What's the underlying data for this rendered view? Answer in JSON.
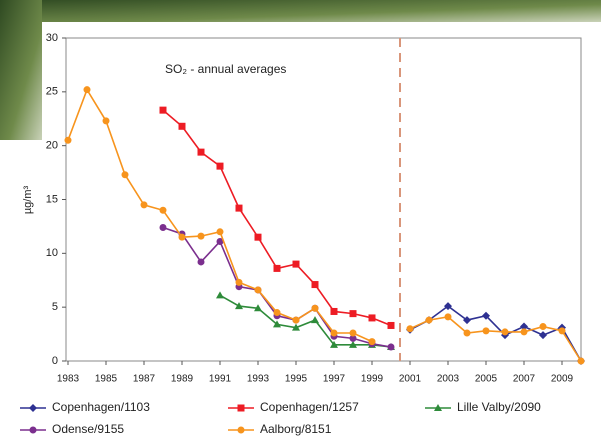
{
  "chart_data": {
    "type": "line",
    "title": "SO₂ - annual averages",
    "y_label": "µg/m³",
    "x": [
      1983,
      1984,
      1985,
      1986,
      1987,
      1988,
      1989,
      1990,
      1991,
      1992,
      1993,
      1994,
      1995,
      1996,
      1997,
      1998,
      1999,
      2000,
      2001,
      2002,
      2003,
      2004,
      2005,
      2006,
      2007,
      2008,
      2009,
      2010
    ],
    "xlim": [
      1983,
      2010
    ],
    "xticks": [
      1983,
      1985,
      1987,
      1989,
      1991,
      1993,
      1995,
      1997,
      1999,
      2001,
      2003,
      2005,
      2007,
      2009
    ],
    "ylim": [
      0,
      30
    ],
    "yticks": [
      0,
      5,
      10,
      15,
      20,
      25,
      30
    ],
    "series": [
      {
        "name": "Copenhagen/1103",
        "color": "#2e3192",
        "marker": "diamond",
        "values": [
          null,
          null,
          null,
          null,
          null,
          null,
          null,
          null,
          null,
          null,
          null,
          null,
          null,
          null,
          null,
          null,
          null,
          null,
          2.9,
          3.8,
          5.1,
          3.8,
          4.2,
          2.4,
          3.2,
          2.4,
          3.1,
          0
        ]
      },
      {
        "name": "Copenhagen/1257",
        "color": "#ed1c24",
        "marker": "square",
        "values": [
          null,
          null,
          null,
          null,
          null,
          23.3,
          21.8,
          19.4,
          18.1,
          14.2,
          11.5,
          8.6,
          9.0,
          7.1,
          4.6,
          4.4,
          4.0,
          3.3,
          null,
          null,
          null,
          null,
          null,
          null,
          null,
          null,
          null,
          null
        ]
      },
      {
        "name": "Lille Valby/2090",
        "color": "#2e8b3a",
        "marker": "triangle",
        "values": [
          null,
          null,
          null,
          null,
          null,
          null,
          null,
          null,
          6.1,
          5.1,
          4.9,
          3.4,
          3.1,
          3.8,
          1.5,
          1.5,
          1.5,
          1.3,
          null,
          null,
          null,
          null,
          null,
          null,
          null,
          null,
          null,
          null
        ]
      },
      {
        "name": "Odense/9155",
        "color": "#7b2f8e",
        "marker": "circle",
        "values": [
          null,
          null,
          null,
          null,
          null,
          12.4,
          11.8,
          9.2,
          11.1,
          6.9,
          6.6,
          4.2,
          3.8,
          4.9,
          2.3,
          2.1,
          1.6,
          1.3,
          null,
          null,
          null,
          null,
          null,
          null,
          null,
          null,
          null,
          null
        ]
      },
      {
        "name": "Aalborg/8151",
        "color": "#f7941d",
        "marker": "circle",
        "values": [
          20.5,
          25.2,
          22.3,
          17.3,
          14.5,
          14.0,
          11.5,
          11.6,
          12.0,
          7.3,
          6.6,
          4.5,
          3.8,
          4.9,
          2.6,
          2.6,
          1.8,
          null,
          3.0,
          3.8,
          4.1,
          2.6,
          2.8,
          2.7,
          2.7,
          3.2,
          2.8,
          0
        ]
      }
    ]
  }
}
